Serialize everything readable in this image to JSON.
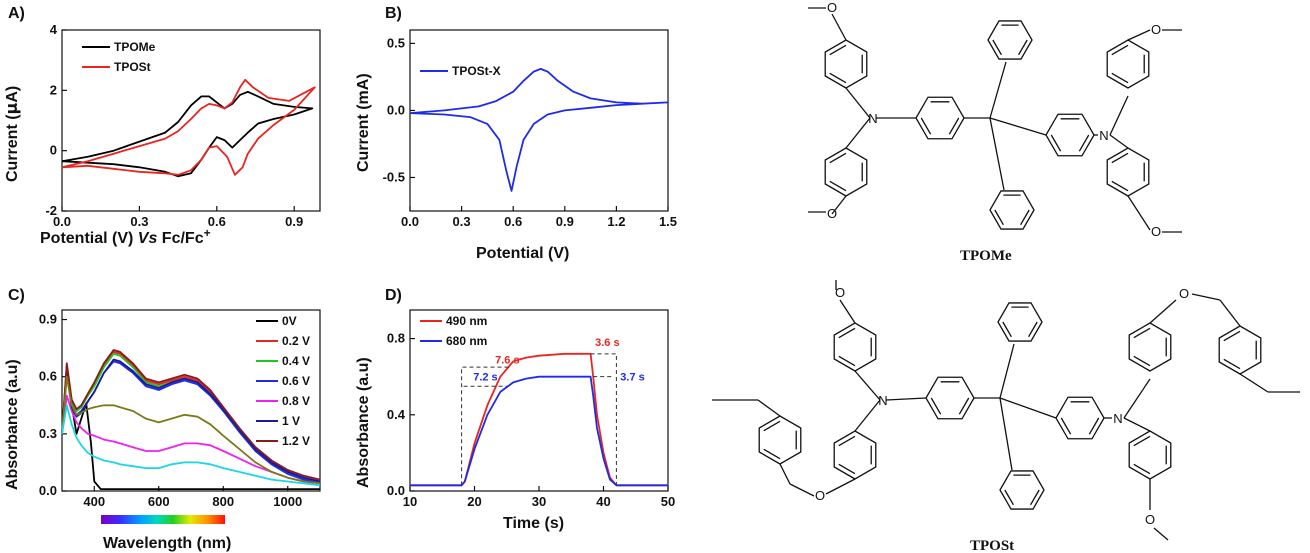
{
  "panels": {
    "a": "A)",
    "b": "B)",
    "c": "C)",
    "d": "D)"
  },
  "chart_data": [
    {
      "id": "A",
      "type": "line",
      "xlabel": "Potential (V) Vs Fc/Fc+",
      "xlabel_parts": {
        "pre": "Potential (V) ",
        "vs": "Vs",
        "post": " Fc/Fc",
        "sup": "+"
      },
      "ylabel": "Current (μA)",
      "ylabel_parts": {
        "pre": "Current (",
        "mu": "μ",
        "post": "A)"
      },
      "xlim": [
        0,
        1.0
      ],
      "ylim": [
        -2,
        4
      ],
      "xticks": [
        "0.0",
        "0.3",
        "0.6",
        "0.9"
      ],
      "xtick_values": [
        0,
        0.3,
        0.6,
        0.9
      ],
      "yticks": [
        "-2",
        "0",
        "2",
        "4"
      ],
      "ytick_values": [
        -2,
        0,
        2,
        4
      ],
      "legend_position": "top-left",
      "series": [
        {
          "name": "TPOMe",
          "color": "#000000",
          "x": [
            0.0,
            0.1,
            0.2,
            0.3,
            0.4,
            0.45,
            0.5,
            0.54,
            0.57,
            0.6,
            0.63,
            0.66,
            0.69,
            0.72,
            0.76,
            0.82,
            0.9,
            0.97,
            0.97,
            0.9,
            0.82,
            0.76,
            0.72,
            0.69,
            0.66,
            0.63,
            0.6,
            0.57,
            0.54,
            0.5,
            0.45,
            0.4,
            0.3,
            0.2,
            0.1,
            0.0
          ],
          "y": [
            -0.35,
            -0.2,
            0.0,
            0.3,
            0.6,
            0.95,
            1.5,
            1.8,
            1.8,
            1.6,
            1.4,
            1.55,
            1.85,
            1.95,
            1.8,
            1.55,
            1.45,
            1.4,
            1.4,
            1.2,
            1.05,
            0.9,
            0.6,
            0.35,
            0.1,
            0.35,
            0.45,
            0.1,
            -0.3,
            -0.75,
            -0.85,
            -0.7,
            -0.55,
            -0.45,
            -0.4,
            -0.35
          ]
        },
        {
          "name": "TPOSt",
          "color": "#e8251f",
          "x": [
            0.0,
            0.1,
            0.2,
            0.3,
            0.4,
            0.45,
            0.5,
            0.54,
            0.57,
            0.6,
            0.63,
            0.66,
            0.69,
            0.71,
            0.74,
            0.8,
            0.88,
            0.98,
            0.98,
            0.9,
            0.82,
            0.76,
            0.72,
            0.7,
            0.67,
            0.64,
            0.6,
            0.57,
            0.54,
            0.5,
            0.45,
            0.4,
            0.3,
            0.2,
            0.1,
            0.0
          ],
          "y": [
            -0.55,
            -0.35,
            -0.1,
            0.15,
            0.4,
            0.65,
            1.05,
            1.4,
            1.55,
            1.5,
            1.4,
            1.6,
            2.1,
            2.35,
            2.1,
            1.75,
            1.65,
            2.1,
            2.1,
            1.35,
            0.85,
            0.4,
            -0.1,
            -0.55,
            -0.8,
            -0.2,
            0.15,
            0.1,
            -0.3,
            -0.65,
            -0.8,
            -0.75,
            -0.7,
            -0.6,
            -0.5,
            -0.55
          ]
        }
      ]
    },
    {
      "id": "B",
      "type": "line",
      "xlabel": "Potential (V)",
      "ylabel": "Current (mA)",
      "xlim": [
        0,
        1.5
      ],
      "ylim": [
        -0.75,
        0.6
      ],
      "xticks": [
        "0.0",
        "0.3",
        "0.6",
        "0.9",
        "1.2",
        "1.5"
      ],
      "xtick_values": [
        0,
        0.3,
        0.6,
        0.9,
        1.2,
        1.5
      ],
      "yticks": [
        "-0.5",
        "0.0",
        "0.5"
      ],
      "ytick_values": [
        -0.5,
        0,
        0.5
      ],
      "legend_position": "top-left",
      "series": [
        {
          "name": "TPOSt-X",
          "color": "#1f2be8",
          "x": [
            0.0,
            0.2,
            0.4,
            0.5,
            0.6,
            0.66,
            0.72,
            0.76,
            0.8,
            0.86,
            0.95,
            1.05,
            1.2,
            1.35,
            1.5,
            1.5,
            1.35,
            1.2,
            1.05,
            0.9,
            0.8,
            0.72,
            0.66,
            0.62,
            0.59,
            0.56,
            0.52,
            0.45,
            0.35,
            0.2,
            0.0
          ],
          "y": [
            -0.02,
            0.0,
            0.03,
            0.07,
            0.14,
            0.22,
            0.29,
            0.31,
            0.29,
            0.22,
            0.14,
            0.09,
            0.06,
            0.05,
            0.06,
            0.06,
            0.05,
            0.04,
            0.02,
            0.0,
            -0.03,
            -0.1,
            -0.22,
            -0.42,
            -0.6,
            -0.45,
            -0.22,
            -0.1,
            -0.05,
            -0.03,
            -0.02
          ]
        }
      ]
    },
    {
      "id": "C",
      "type": "line",
      "xlabel": "Wavelength (nm)",
      "ylabel": "Absorbance (a.u)",
      "xlim": [
        300,
        1100
      ],
      "ylim": [
        0,
        0.95
      ],
      "xticks": [
        "400",
        "600",
        "800",
        "1000"
      ],
      "xtick_values": [
        400,
        600,
        800,
        1000
      ],
      "yticks": [
        "0.0",
        "0.3",
        "0.6",
        "0.9"
      ],
      "ytick_values": [
        0,
        0.3,
        0.6,
        0.9
      ],
      "legend_position": "top-right",
      "colorbar_range": [
        380,
        780
      ],
      "series": [
        {
          "name": "0V",
          "color": "#000000",
          "x": [
            300,
            315,
            330,
            345,
            360,
            375,
            390,
            400,
            420,
            450,
            500,
            600,
            700,
            800,
            900,
            1000,
            1100
          ],
          "y": [
            0.3,
            0.64,
            0.45,
            0.3,
            0.38,
            0.46,
            0.25,
            0.05,
            0.01,
            0.01,
            0.01,
            0.01,
            0.01,
            0.01,
            0.01,
            0.01,
            0.01
          ]
        },
        {
          "name": "0.2 V",
          "color": "#e8251f",
          "x": [
            300,
            315,
            330,
            345,
            360,
            380,
            400,
            430,
            460,
            480,
            520,
            560,
            600,
            640,
            680,
            720,
            760,
            800,
            850,
            900,
            950,
            1000,
            1050,
            1100
          ],
          "y": [
            0.3,
            0.66,
            0.47,
            0.42,
            0.44,
            0.5,
            0.56,
            0.66,
            0.73,
            0.72,
            0.66,
            0.58,
            0.56,
            0.58,
            0.6,
            0.58,
            0.52,
            0.43,
            0.32,
            0.22,
            0.15,
            0.1,
            0.07,
            0.05
          ]
        },
        {
          "name": "0.4 V",
          "color": "#22c322",
          "x": [
            300,
            315,
            330,
            345,
            360,
            380,
            400,
            430,
            460,
            480,
            520,
            560,
            600,
            640,
            680,
            720,
            760,
            800,
            850,
            900,
            950,
            1000,
            1050,
            1100
          ],
          "y": [
            0.3,
            0.65,
            0.47,
            0.42,
            0.44,
            0.5,
            0.55,
            0.65,
            0.72,
            0.71,
            0.65,
            0.57,
            0.55,
            0.57,
            0.59,
            0.57,
            0.51,
            0.42,
            0.31,
            0.21,
            0.14,
            0.09,
            0.06,
            0.04
          ]
        },
        {
          "name": "0.6 V",
          "color": "#1f2be8",
          "x": [
            300,
            315,
            330,
            345,
            360,
            380,
            400,
            430,
            460,
            480,
            520,
            560,
            600,
            640,
            680,
            720,
            760,
            800,
            850,
            900,
            950,
            1000,
            1050,
            1100
          ],
          "y": [
            0.3,
            0.62,
            0.45,
            0.4,
            0.42,
            0.47,
            0.52,
            0.62,
            0.68,
            0.67,
            0.62,
            0.55,
            0.53,
            0.56,
            0.58,
            0.56,
            0.5,
            0.42,
            0.31,
            0.21,
            0.14,
            0.09,
            0.06,
            0.04
          ]
        },
        {
          "name": "0.8 V",
          "color": "#ee22ee",
          "x": [
            300,
            315,
            330,
            345,
            360,
            380,
            400,
            430,
            460,
            480,
            520,
            560,
            600,
            640,
            680,
            720,
            760,
            800,
            850,
            900,
            950,
            1000,
            1050,
            1100
          ],
          "y": [
            0.3,
            0.5,
            0.42,
            0.36,
            0.33,
            0.3,
            0.29,
            0.27,
            0.26,
            0.25,
            0.23,
            0.21,
            0.21,
            0.23,
            0.25,
            0.25,
            0.24,
            0.21,
            0.17,
            0.13,
            0.1,
            0.07,
            0.05,
            0.04
          ]
        },
        {
          "name": "1 V",
          "color": "#1a1a9a",
          "x": [
            300,
            315,
            330,
            345,
            360,
            380,
            400,
            430,
            460,
            480,
            520,
            560,
            600,
            640,
            680,
            720,
            760,
            800,
            850,
            900,
            950,
            1000,
            1050,
            1100
          ],
          "y": [
            0.3,
            0.62,
            0.44,
            0.39,
            0.41,
            0.47,
            0.52,
            0.62,
            0.69,
            0.68,
            0.63,
            0.56,
            0.54,
            0.57,
            0.59,
            0.57,
            0.51,
            0.43,
            0.32,
            0.22,
            0.15,
            0.1,
            0.07,
            0.05
          ]
        },
        {
          "name": "1.2 V",
          "color": "#8a1a1a",
          "x": [
            300,
            315,
            330,
            345,
            360,
            380,
            400,
            430,
            460,
            480,
            520,
            560,
            600,
            640,
            680,
            720,
            760,
            800,
            850,
            900,
            950,
            1000,
            1050,
            1100
          ],
          "y": [
            0.3,
            0.67,
            0.48,
            0.43,
            0.45,
            0.51,
            0.57,
            0.67,
            0.74,
            0.73,
            0.67,
            0.59,
            0.57,
            0.59,
            0.61,
            0.59,
            0.53,
            0.44,
            0.33,
            0.23,
            0.16,
            0.11,
            0.08,
            0.06
          ]
        },
        {
          "name": "",
          "color": "#7a7a1a",
          "x": [
            300,
            315,
            330,
            345,
            360,
            380,
            400,
            430,
            460,
            480,
            520,
            560,
            600,
            640,
            680,
            720,
            760,
            800,
            850,
            900,
            950,
            1000,
            1050,
            1100
          ],
          "y": [
            0.3,
            0.6,
            0.45,
            0.4,
            0.41,
            0.43,
            0.44,
            0.45,
            0.45,
            0.44,
            0.42,
            0.38,
            0.36,
            0.38,
            0.4,
            0.39,
            0.35,
            0.29,
            0.22,
            0.15,
            0.1,
            0.07,
            0.05,
            0.04
          ]
        },
        {
          "name": "",
          "color": "#1ad6e8",
          "x": [
            300,
            315,
            330,
            345,
            360,
            380,
            400,
            430,
            460,
            480,
            520,
            560,
            600,
            640,
            680,
            720,
            760,
            800,
            850,
            900,
            950,
            1000,
            1050,
            1100
          ],
          "y": [
            0.3,
            0.45,
            0.35,
            0.28,
            0.24,
            0.2,
            0.18,
            0.16,
            0.15,
            0.14,
            0.13,
            0.12,
            0.12,
            0.14,
            0.15,
            0.15,
            0.14,
            0.12,
            0.1,
            0.08,
            0.06,
            0.05,
            0.04,
            0.03
          ]
        }
      ]
    },
    {
      "id": "D",
      "type": "line",
      "xlabel": "Time (s)",
      "ylabel": "Absorbance (a.u)",
      "xlim": [
        10,
        50
      ],
      "ylim": [
        0,
        0.95
      ],
      "xticks": [
        "10",
        "20",
        "30",
        "40",
        "50"
      ],
      "xtick_values": [
        10,
        20,
        30,
        40,
        50
      ],
      "yticks": [
        "0.0",
        "0.4",
        "0.8"
      ],
      "ytick_values": [
        0,
        0.4,
        0.8
      ],
      "legend_position": "top-left",
      "annotations": [
        {
          "text": "7.6 s",
          "color": "#e8251f",
          "x": 23.2,
          "y": 0.67
        },
        {
          "text": "3.6 s",
          "color": "#e8251f",
          "x": 38.7,
          "y": 0.76
        },
        {
          "text": "7.2 s",
          "color": "#1f2be8",
          "x": 19.8,
          "y": 0.58
        },
        {
          "text": "3.7 s",
          "color": "#1f2be8",
          "x": 42.6,
          "y": 0.58
        }
      ],
      "series": [
        {
          "name": "490 nm",
          "color": "#e8251f",
          "x": [
            10,
            18,
            18.5,
            20,
            22,
            24,
            26,
            28,
            30,
            34,
            38,
            38.4,
            39,
            40,
            41,
            42,
            43,
            50
          ],
          "y": [
            0.03,
            0.03,
            0.05,
            0.25,
            0.45,
            0.6,
            0.68,
            0.7,
            0.71,
            0.72,
            0.72,
            0.6,
            0.4,
            0.2,
            0.07,
            0.03,
            0.03,
            0.03
          ]
        },
        {
          "name": "680 nm",
          "color": "#1f2be8",
          "x": [
            10,
            18,
            18.5,
            20,
            22,
            24,
            26,
            28,
            30,
            34,
            38,
            38.4,
            39,
            40,
            41,
            42,
            43,
            50
          ],
          "y": [
            0.03,
            0.03,
            0.05,
            0.22,
            0.4,
            0.52,
            0.57,
            0.59,
            0.6,
            0.6,
            0.6,
            0.5,
            0.33,
            0.17,
            0.06,
            0.03,
            0.03,
            0.03
          ]
        }
      ]
    }
  ],
  "structures": {
    "top_name": "TPOMe",
    "bottom_name": "TPOSt",
    "atom_n": "N",
    "atom_o": "O"
  }
}
